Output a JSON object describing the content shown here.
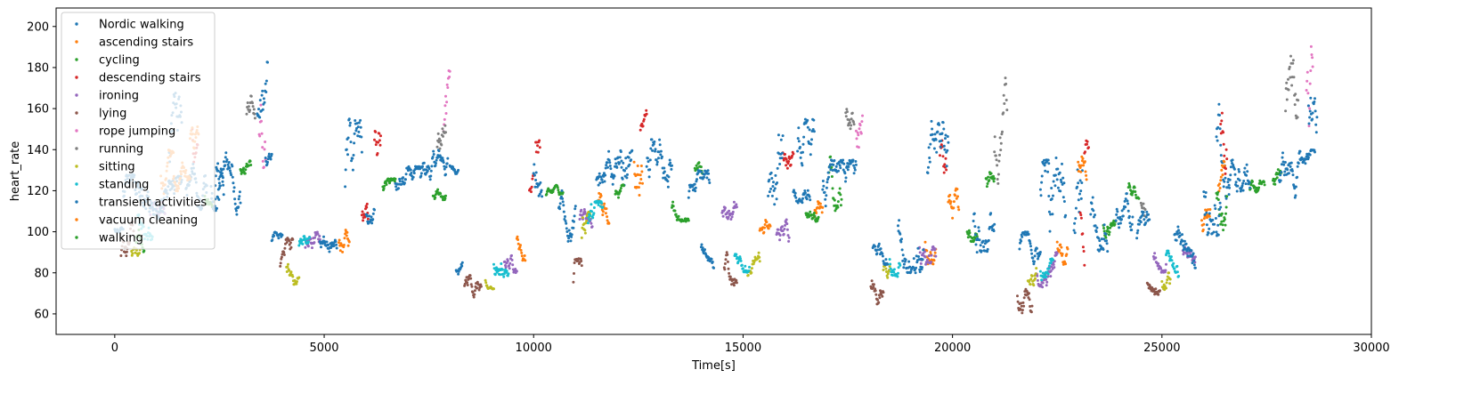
{
  "chart_data": {
    "type": "scatter",
    "xlabel": "Time[s]",
    "ylabel": "heart_rate",
    "xlim": [
      -1400,
      30000
    ],
    "ylim": [
      50,
      209
    ],
    "x_ticks": [
      0,
      5000,
      10000,
      15000,
      20000,
      25000,
      30000
    ],
    "y_ticks": [
      60,
      80,
      100,
      120,
      140,
      160,
      180,
      200
    ],
    "legend_position": "top-left",
    "grid": false,
    "series": [
      {
        "name": "Nordic walking",
        "color": "#1f77b4",
        "segments": [
          [
            1300,
            102,
            1600,
            168
          ],
          [
            2400,
            108,
            3000,
            140
          ],
          [
            3400,
            130,
            3650,
            183
          ],
          [
            7300,
            118,
            7950,
            140
          ],
          [
            8000,
            128,
            8200,
            135
          ],
          [
            12100,
            108,
            12350,
            160
          ],
          [
            16200,
            112,
            16600,
            125
          ],
          [
            22100,
            95,
            22300,
            135
          ],
          [
            22900,
            80,
            23100,
            142
          ],
          [
            26300,
            115,
            26600,
            170
          ],
          [
            28300,
            128,
            28650,
            140
          ]
        ]
      },
      {
        "name": "ascending stairs",
        "color": "#ff7f0e",
        "segments": [
          [
            1100,
            118,
            1400,
            140
          ],
          [
            5350,
            88,
            5600,
            108
          ],
          [
            9600,
            86,
            9800,
            103
          ],
          [
            11550,
            104,
            11800,
            127
          ],
          [
            12400,
            115,
            12600,
            155
          ],
          [
            15400,
            93,
            15650,
            110
          ],
          [
            16700,
            95,
            16900,
            115
          ],
          [
            19350,
            84,
            19600,
            110
          ],
          [
            19900,
            95,
            20150,
            125
          ],
          [
            22500,
            84,
            22750,
            108
          ],
          [
            23000,
            115,
            23200,
            145
          ],
          [
            25950,
            90,
            26150,
            115
          ],
          [
            26350,
            108,
            26500,
            135
          ]
        ]
      },
      {
        "name": "cycling",
        "color": "#2ca02c",
        "segments": [
          [
            2150,
            112,
            2350,
            126
          ],
          [
            3000,
            124,
            3250,
            135
          ],
          [
            6400,
            114,
            6700,
            126
          ],
          [
            7600,
            112,
            7900,
            122
          ],
          [
            10300,
            115,
            10700,
            123
          ],
          [
            11950,
            113,
            12150,
            123
          ],
          [
            13300,
            105,
            13700,
            117
          ],
          [
            13850,
            125,
            14050,
            139
          ],
          [
            16500,
            105,
            16800,
            117
          ],
          [
            17050,
            110,
            17350,
            144
          ],
          [
            20350,
            95,
            20600,
            108
          ],
          [
            20800,
            115,
            21000,
            138
          ],
          [
            23600,
            95,
            23900,
            108
          ],
          [
            24200,
            116,
            24450,
            128
          ],
          [
            26300,
            100,
            26550,
            132
          ],
          [
            27100,
            112,
            27450,
            125
          ],
          [
            27650,
            118,
            27850,
            133
          ]
        ]
      },
      {
        "name": "descending stairs",
        "color": "#d62728",
        "segments": [
          [
            1850,
            130,
            1980,
            170
          ],
          [
            5900,
            92,
            6050,
            120
          ],
          [
            6200,
            128,
            6350,
            165
          ],
          [
            9900,
            95,
            10000,
            140
          ],
          [
            10050,
            128,
            10150,
            160
          ],
          [
            12550,
            140,
            12700,
            161
          ],
          [
            15950,
            130,
            16100,
            150
          ],
          [
            16100,
            120,
            16200,
            145
          ],
          [
            19700,
            124,
            19850,
            158
          ],
          [
            23050,
            80,
            23150,
            125
          ],
          [
            23150,
            130,
            23250,
            152
          ],
          [
            26400,
            115,
            26550,
            175
          ]
        ]
      },
      {
        "name": "ironing",
        "color": "#9467bd",
        "segments": [
          [
            850,
            95,
            1200,
            115
          ],
          [
            4550,
            83,
            4900,
            100
          ],
          [
            9300,
            80,
            9600,
            95
          ],
          [
            11100,
            98,
            11400,
            113
          ],
          [
            14500,
            100,
            14850,
            118
          ],
          [
            15800,
            88,
            16100,
            106
          ],
          [
            19200,
            84,
            19600,
            105
          ],
          [
            22000,
            73,
            22500,
            90
          ],
          [
            24800,
            80,
            25100,
            98
          ],
          [
            25500,
            85,
            25800,
            100
          ]
        ]
      },
      {
        "name": "lying",
        "color": "#8c564b",
        "segments": [
          [
            150,
            78,
            450,
            105
          ],
          [
            3950,
            75,
            4250,
            97
          ],
          [
            8350,
            68,
            8750,
            85
          ],
          [
            10950,
            57,
            11150,
            87
          ],
          [
            14550,
            70,
            14850,
            90
          ],
          [
            18050,
            60,
            18350,
            82
          ],
          [
            21550,
            60,
            21900,
            84
          ],
          [
            24650,
            68,
            24950,
            80
          ]
        ]
      },
      {
        "name": "rope jumping",
        "color": "#e377c2",
        "segments": [
          [
            3450,
            130,
            3600,
            183
          ],
          [
            7850,
            130,
            8000,
            179
          ],
          [
            17700,
            130,
            17850,
            182
          ],
          [
            28450,
            128,
            28600,
            202
          ]
        ]
      },
      {
        "name": "running",
        "color": "#7f7f7f",
        "segments": [
          [
            3150,
            150,
            3350,
            172
          ],
          [
            7700,
            130,
            7900,
            160
          ],
          [
            17450,
            150,
            17650,
            172
          ],
          [
            21000,
            120,
            21300,
            176
          ],
          [
            24500,
            100,
            24600,
            128
          ],
          [
            27950,
            130,
            28250,
            196
          ]
        ]
      },
      {
        "name": "sitting",
        "color": "#bcbd22",
        "segments": [
          [
            400,
            84,
            600,
            96
          ],
          [
            4100,
            74,
            4400,
            88
          ],
          [
            8850,
            72,
            9050,
            82
          ],
          [
            11150,
            78,
            11350,
            110
          ],
          [
            15100,
            76,
            15400,
            90
          ],
          [
            18350,
            72,
            18500,
            88
          ],
          [
            21800,
            65,
            22000,
            83
          ],
          [
            25000,
            66,
            25200,
            82
          ]
        ]
      },
      {
        "name": "standing",
        "color": "#17becf",
        "segments": [
          [
            550,
            96,
            900,
            124
          ],
          [
            4400,
            86,
            4650,
            98
          ],
          [
            9050,
            78,
            9400,
            96
          ],
          [
            11300,
            95,
            11650,
            115
          ],
          [
            14800,
            80,
            15150,
            96
          ],
          [
            18500,
            78,
            18750,
            95
          ],
          [
            22100,
            72,
            22400,
            87
          ],
          [
            25100,
            78,
            25400,
            94
          ]
        ]
      },
      {
        "name": "transient activities",
        "color": "#1f77b4",
        "segments": [
          [
            0,
            98,
            200,
            104
          ],
          [
            200,
            106,
            1600,
            128
          ],
          [
            1700,
            108,
            2200,
            140
          ],
          [
            2300,
            110,
            2600,
            145
          ],
          [
            3600,
            128,
            3750,
            140
          ],
          [
            3750,
            90,
            4000,
            100
          ],
          [
            4900,
            88,
            5300,
            100
          ],
          [
            5500,
            92,
            5900,
            155
          ],
          [
            6000,
            95,
            6200,
            115
          ],
          [
            6700,
            115,
            7300,
            132
          ],
          [
            8150,
            75,
            8300,
            85
          ],
          [
            10000,
            110,
            10200,
            150
          ],
          [
            10600,
            95,
            11000,
            120
          ],
          [
            11500,
            112,
            12100,
            140
          ],
          [
            12700,
            108,
            13300,
            145
          ],
          [
            13700,
            110,
            14200,
            130
          ],
          [
            14000,
            82,
            14300,
            98
          ],
          [
            15600,
            95,
            15950,
            148
          ],
          [
            16300,
            115,
            16700,
            155
          ],
          [
            16900,
            105,
            17700,
            135
          ],
          [
            18100,
            84,
            18450,
            100
          ],
          [
            18700,
            80,
            19300,
            115
          ],
          [
            19400,
            98,
            19900,
            154
          ],
          [
            20500,
            90,
            21000,
            130
          ],
          [
            21600,
            82,
            22100,
            100
          ],
          [
            22300,
            85,
            22700,
            142
          ],
          [
            23300,
            90,
            23700,
            130
          ],
          [
            23900,
            95,
            24300,
            120
          ],
          [
            24400,
            88,
            24700,
            110
          ],
          [
            25300,
            82,
            25800,
            108
          ],
          [
            26000,
            98,
            26400,
            155
          ],
          [
            26600,
            105,
            27100,
            135
          ],
          [
            27800,
            110,
            28300,
            140
          ],
          [
            28500,
            140,
            28700,
            190
          ]
        ]
      },
      {
        "name": "vacuum cleaning",
        "color": "#ff7f0e",
        "segments": [
          [
            1400,
            115,
            1800,
            135
          ],
          [
            1800,
            138,
            2000,
            160
          ]
        ]
      },
      {
        "name": "walking",
        "color": "#2ca02c",
        "segments": [
          [
            500,
            90,
            700,
            110
          ]
        ]
      }
    ]
  }
}
